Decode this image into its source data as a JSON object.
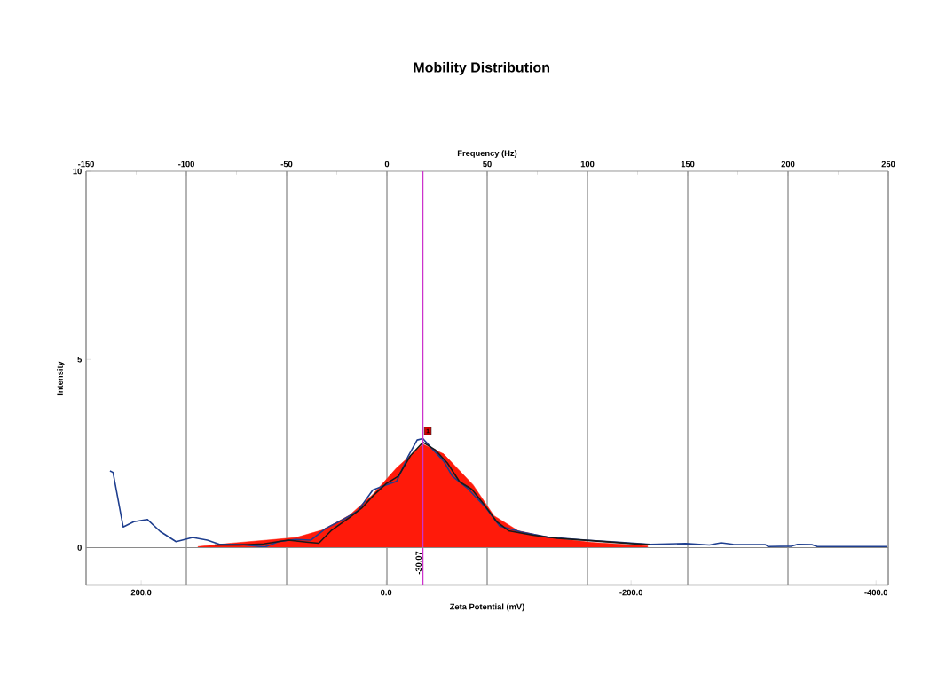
{
  "chart_data": {
    "type": "line",
    "title": "Mobility Distribution",
    "xlabel": "Zeta Potential (mV)",
    "ylabel": "Intensity",
    "x2label": "Frequency (Hz)",
    "xlim": [
      245,
      -410
    ],
    "xticks": [
      {
        "value": 200,
        "label": "200.0"
      },
      {
        "value": 0,
        "label": "0.0"
      },
      {
        "value": -200,
        "label": "-200.0"
      },
      {
        "value": -400,
        "label": "-400.0"
      }
    ],
    "x2lim": [
      -150,
      250
    ],
    "x2ticks": [
      -150,
      -100,
      -50,
      0,
      50,
      100,
      150,
      200,
      250
    ],
    "ylim": [
      -1,
      10
    ],
    "yticks": [
      0,
      5,
      10
    ],
    "grid": "x",
    "marker": "none",
    "series": [
      {
        "type": "area",
        "color": "#ff1a0a",
        "x": [
          153.6,
          126.6,
          97.7,
          73.6,
          52,
          30,
          11,
          -8.5,
          -30,
          -47,
          -71,
          -88,
          -107.8,
          -131.5,
          -167.7,
          -213.5
        ],
        "values": [
          0.03,
          0.12,
          0.2,
          0.27,
          0.47,
          0.86,
          1.41,
          2.12,
          2.75,
          2.49,
          1.67,
          0.85,
          0.45,
          0.28,
          0.14,
          0.05
        ]
      },
      {
        "color": "#1f3f8f",
        "x": [
          225.5,
          223,
          214.7,
          206,
          195,
          184.5,
          171.5,
          158,
          146,
          136,
          117,
          99,
          88,
          74,
          61.5,
          49.4,
          35,
          23,
          10.9,
          1.4,
          -8.5,
          -18,
          -25.3,
          -30,
          -34.7,
          -47,
          -54,
          -66,
          -81,
          -92.8,
          -110,
          -131.5,
          -163,
          -192,
          -215.6,
          -244.6,
          -264,
          -273.5,
          -283.4,
          -309.7,
          -312,
          -331,
          -336,
          -348,
          -352,
          -409
        ],
        "values": [
          2.04,
          2.0,
          0.55,
          0.69,
          0.75,
          0.43,
          0.16,
          0.27,
          0.2,
          0.09,
          0.08,
          0.02,
          0.16,
          0.22,
          0.2,
          0.51,
          0.75,
          0.98,
          1.53,
          1.65,
          1.76,
          2.43,
          2.86,
          2.9,
          2.73,
          2.3,
          1.9,
          1.59,
          1.08,
          0.57,
          0.42,
          0.28,
          0.2,
          0.14,
          0.09,
          0.11,
          0.07,
          0.13,
          0.09,
          0.08,
          0.03,
          0.04,
          0.09,
          0.08,
          0.03,
          0.03
        ]
      },
      {
        "color": "#1a1a1a",
        "x": [
          140,
          120,
          100,
          80,
          65,
          55,
          45,
          30,
          20,
          10,
          0,
          -10,
          -20,
          -30,
          -40,
          -50,
          -60,
          -70,
          -80,
          -90,
          -100,
          -120,
          -140,
          -170,
          -200,
          -215
        ],
        "values": [
          0.07,
          0.07,
          0.1,
          0.2,
          0.15,
          0.12,
          0.45,
          0.8,
          1.05,
          1.4,
          1.7,
          1.9,
          2.45,
          2.8,
          2.6,
          2.25,
          1.75,
          1.55,
          1.15,
          0.7,
          0.45,
          0.33,
          0.25,
          0.18,
          0.11,
          0.08
        ]
      }
    ],
    "ref_lines": [
      {
        "axis": "x",
        "value": -30.07,
        "label": "-30.07",
        "color": "#cc33cc"
      },
      {
        "axis": "y",
        "value": 0,
        "color": "#8a8a8a"
      }
    ],
    "annotations": [
      {
        "text": "1",
        "x": -34,
        "y": 3.1
      }
    ]
  }
}
